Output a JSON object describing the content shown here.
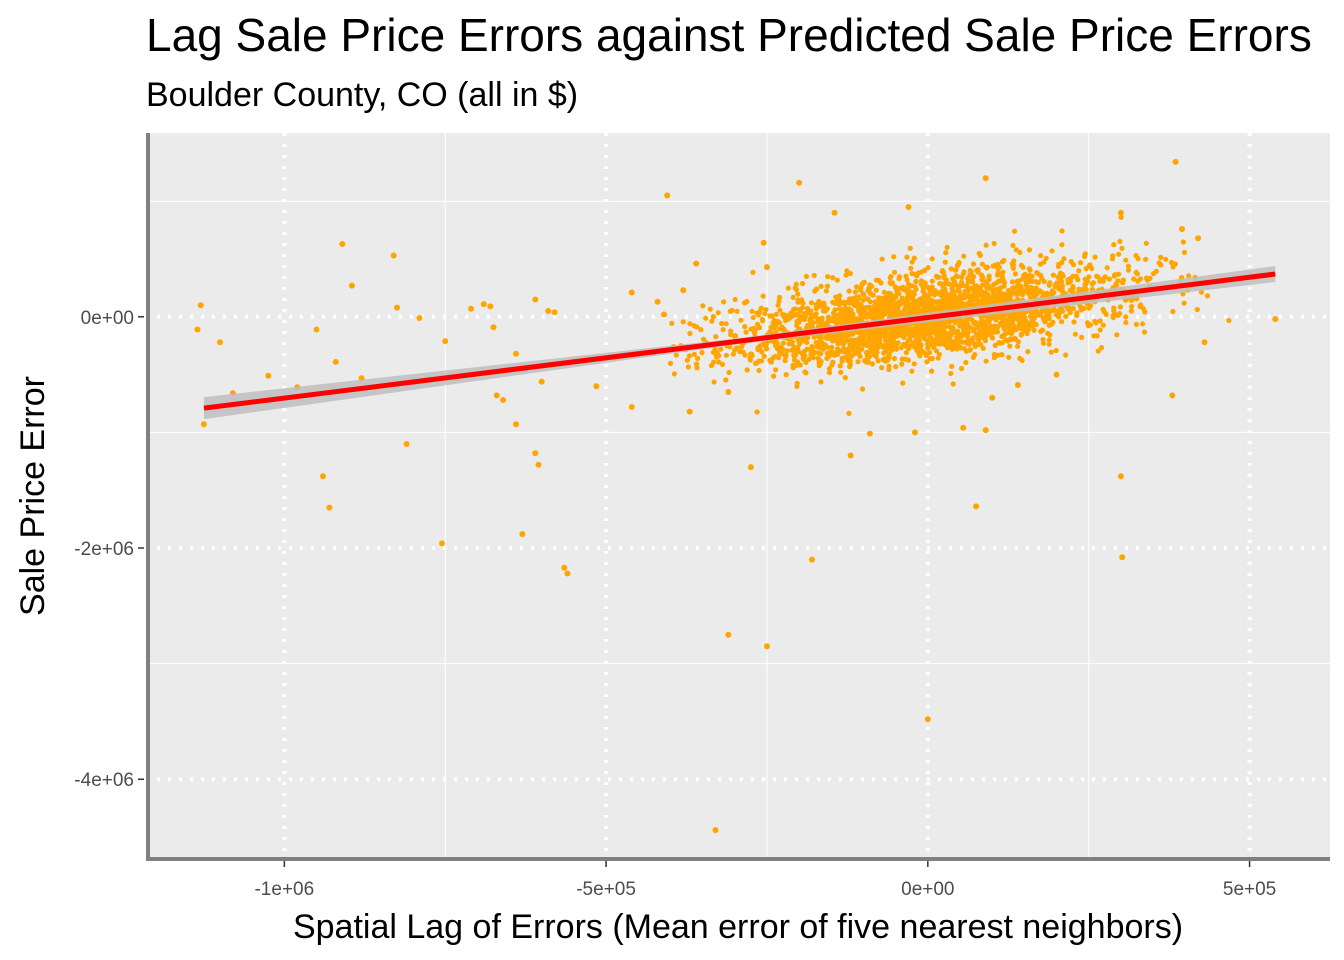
{
  "chart_data": {
    "type": "scatter",
    "title": "Lag Sale Price Errors against Predicted Sale Price Errors",
    "subtitle": "Boulder County, CO (all in $)",
    "xlabel": "Spatial Lag of Errors (Mean error of five nearest neighbors)",
    "ylabel": "Sale Price Error",
    "xlim": [
      -1215000,
      625000
    ],
    "ylim": [
      -4690000,
      1590000
    ],
    "x_ticks": [
      {
        "value": -1000000,
        "label": "-1e+06"
      },
      {
        "value": -500000,
        "label": "-5e+05"
      },
      {
        "value": 0,
        "label": "0e+00"
      },
      {
        "value": 500000,
        "label": "5e+05"
      }
    ],
    "y_ticks": [
      {
        "value": 0,
        "label": "0e+00"
      },
      {
        "value": -2000000,
        "label": "-2e+06"
      },
      {
        "value": -4000000,
        "label": "-4e+06"
      }
    ],
    "grid": true,
    "point_color": "#FFA500",
    "fit_line": {
      "type": "linear",
      "color": "#FF0000",
      "x": [
        -1125000,
        540000
      ],
      "y": [
        -790000,
        370000
      ],
      "band_color": "#BEBEBE"
    },
    "outliers": [
      {
        "x": -1130000,
        "y": 100000
      },
      {
        "x": -1135000,
        "y": -110000
      },
      {
        "x": -1100000,
        "y": -220000
      },
      {
        "x": -1080000,
        "y": -660000
      },
      {
        "x": -1125000,
        "y": -930000
      },
      {
        "x": -1025000,
        "y": -510000
      },
      {
        "x": -980000,
        "y": -610000
      },
      {
        "x": -950000,
        "y": -110000
      },
      {
        "x": -920000,
        "y": -390000
      },
      {
        "x": -910000,
        "y": 630000
      },
      {
        "x": -895000,
        "y": 270000
      },
      {
        "x": -880000,
        "y": -530000
      },
      {
        "x": -940000,
        "y": -1380000
      },
      {
        "x": -930000,
        "y": -1650000
      },
      {
        "x": -830000,
        "y": 530000
      },
      {
        "x": -825000,
        "y": 80000
      },
      {
        "x": -790000,
        "y": -10000
      },
      {
        "x": -810000,
        "y": -1100000
      },
      {
        "x": -750000,
        "y": -210000
      },
      {
        "x": -755000,
        "y": -1960000
      },
      {
        "x": -710000,
        "y": 70000
      },
      {
        "x": -690000,
        "y": 110000
      },
      {
        "x": -680000,
        "y": 90000
      },
      {
        "x": -675000,
        "y": -90000
      },
      {
        "x": -640000,
        "y": -320000
      },
      {
        "x": -670000,
        "y": -680000
      },
      {
        "x": -660000,
        "y": -720000
      },
      {
        "x": -640000,
        "y": -930000
      },
      {
        "x": -630000,
        "y": -1880000
      },
      {
        "x": -610000,
        "y": 150000
      },
      {
        "x": -590000,
        "y": 50000
      },
      {
        "x": -580000,
        "y": 40000
      },
      {
        "x": -600000,
        "y": -560000
      },
      {
        "x": -610000,
        "y": -1180000
      },
      {
        "x": -605000,
        "y": -1280000
      },
      {
        "x": -565000,
        "y": -2170000
      },
      {
        "x": -560000,
        "y": -2220000
      },
      {
        "x": -515000,
        "y": -600000
      },
      {
        "x": -460000,
        "y": -780000
      },
      {
        "x": -460000,
        "y": 210000
      },
      {
        "x": -420000,
        "y": 130000
      },
      {
        "x": -410000,
        "y": 20000
      },
      {
        "x": -405000,
        "y": 1050000
      },
      {
        "x": -380000,
        "y": 230000
      },
      {
        "x": -370000,
        "y": -820000
      },
      {
        "x": -360000,
        "y": 460000
      },
      {
        "x": -330000,
        "y": -310000
      },
      {
        "x": -310000,
        "y": -650000
      },
      {
        "x": -330000,
        "y": -4440000
      },
      {
        "x": -310000,
        "y": -2750000
      },
      {
        "x": -250000,
        "y": -2850000
      },
      {
        "x": -275000,
        "y": -1300000
      },
      {
        "x": -250000,
        "y": 430000
      },
      {
        "x": -255000,
        "y": 640000
      },
      {
        "x": -200000,
        "y": 1160000
      },
      {
        "x": -180000,
        "y": -2100000
      },
      {
        "x": -145000,
        "y": 900000
      },
      {
        "x": -120000,
        "y": -1200000
      },
      {
        "x": -90000,
        "y": -1010000
      },
      {
        "x": -30000,
        "y": 950000
      },
      {
        "x": -20000,
        "y": -1000000
      },
      {
        "x": 0,
        "y": -3480000
      },
      {
        "x": 55000,
        "y": -960000
      },
      {
        "x": 75000,
        "y": -1640000
      },
      {
        "x": 90000,
        "y": -980000
      },
      {
        "x": 90000,
        "y": 1200000
      },
      {
        "x": 300000,
        "y": 900000
      },
      {
        "x": 300000,
        "y": -1380000
      },
      {
        "x": 302000,
        "y": -2080000
      },
      {
        "x": 385000,
        "y": 1340000
      },
      {
        "x": 395000,
        "y": 760000
      },
      {
        "x": 420000,
        "y": 680000
      },
      {
        "x": 380000,
        "y": -680000
      },
      {
        "x": 430000,
        "y": -220000
      },
      {
        "x": 540000,
        "y": -20000
      },
      {
        "x": 100000,
        "y": -700000
      },
      {
        "x": 140000,
        "y": -590000
      },
      {
        "x": 200000,
        "y": -500000
      }
    ],
    "cluster": {
      "x_mean": 0,
      "x_sd": 155000,
      "slope": 0.7,
      "resid_sd": 230000,
      "count": 2600
    }
  }
}
